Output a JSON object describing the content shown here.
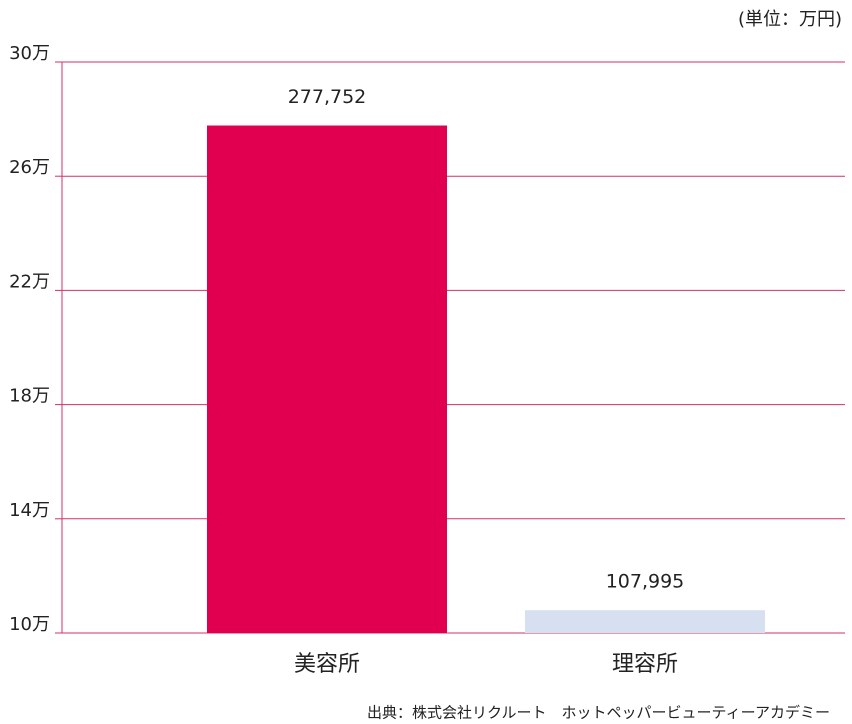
{
  "chart_data": {
    "type": "bar",
    "unit_label": "(単位：万円)",
    "source": "出典：株式会社リクルート　ホットペッパービューティーアカデミー",
    "categories": [
      "美容所",
      "理容所"
    ],
    "values": [
      277752,
      107995
    ],
    "value_labels": [
      "277,752",
      "107,995"
    ],
    "colors": [
      "#e0004f",
      "#d6e0f0"
    ],
    "grid_color": "#d0306a",
    "ylim": [
      100000,
      300000
    ],
    "yticks": [
      {
        "value": 100000,
        "label": "10万"
      },
      {
        "value": 140000,
        "label": "14万"
      },
      {
        "value": 180000,
        "label": "18万"
      },
      {
        "value": 220000,
        "label": "22万"
      },
      {
        "value": 260000,
        "label": "26万"
      },
      {
        "value": 300000,
        "label": "30万"
      }
    ],
    "grid": true
  }
}
